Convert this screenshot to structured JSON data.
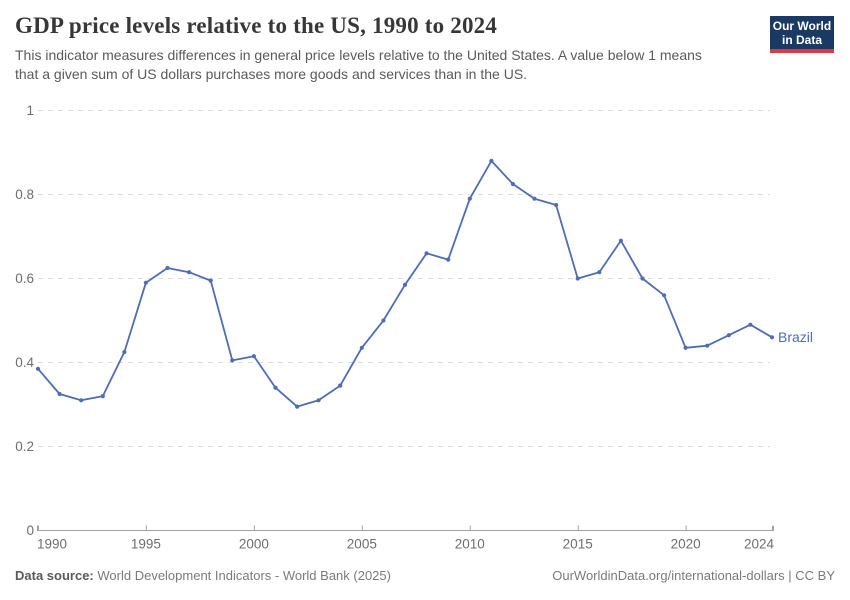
{
  "header": {
    "title": "GDP price levels relative to the US, 1990 to 2024",
    "subtitle_lines": [
      "This indicator measures differences in general price levels relative to the United States. A value below 1 means",
      "that a given sum of US dollars purchases more goods and services than in the US."
    ],
    "logo": {
      "line1": "Our World",
      "line2": "in Data",
      "bg": "#1a3a63",
      "stripe": "#d93b3f"
    }
  },
  "chart_data": {
    "type": "line",
    "title": "GDP price levels relative to the US, 1990 to 2024",
    "xlabel": "",
    "ylabel": "",
    "xlim": [
      1990,
      2024
    ],
    "ylim": [
      0,
      1
    ],
    "grid": "horizontal-dashed",
    "legend": "series-end-label",
    "x_ticks": [
      {
        "v": 1990,
        "label": "1990"
      },
      {
        "v": 1995,
        "label": "1995"
      },
      {
        "v": 2000,
        "label": "2000"
      },
      {
        "v": 2005,
        "label": "2005"
      },
      {
        "v": 2010,
        "label": "2010"
      },
      {
        "v": 2015,
        "label": "2015"
      },
      {
        "v": 2020,
        "label": "2020"
      },
      {
        "v": 2024,
        "label": "2024"
      }
    ],
    "y_ticks": [
      {
        "v": 0,
        "label": "0"
      },
      {
        "v": 0.2,
        "label": "0.2"
      },
      {
        "v": 0.4,
        "label": "0.4"
      },
      {
        "v": 0.6,
        "label": "0.6"
      },
      {
        "v": 0.8,
        "label": "0.8"
      },
      {
        "v": 1,
        "label": "1"
      }
    ],
    "series": [
      {
        "name": "Brazil",
        "color": "#4e6db2",
        "years": [
          1990,
          1991,
          1992,
          1993,
          1994,
          1995,
          1996,
          1997,
          1998,
          1999,
          2000,
          2001,
          2002,
          2003,
          2004,
          2005,
          2006,
          2007,
          2008,
          2009,
          2010,
          2011,
          2012,
          2013,
          2014,
          2015,
          2016,
          2017,
          2018,
          2019,
          2020,
          2021,
          2022,
          2023,
          2024
        ],
        "values": [
          0.385,
          0.325,
          0.31,
          0.32,
          0.425,
          0.59,
          0.625,
          0.615,
          0.595,
          0.405,
          0.415,
          0.34,
          0.295,
          0.31,
          0.345,
          0.435,
          0.5,
          0.585,
          0.66,
          0.645,
          0.79,
          0.88,
          0.825,
          0.79,
          0.775,
          0.6,
          0.615,
          0.69,
          0.6,
          0.56,
          0.435,
          0.44,
          0.465,
          0.49,
          0.46
        ]
      }
    ],
    "colors": {
      "grid": "#dcdcdc",
      "axis": "#a1a1a1",
      "tick_text": "#6e6e6e"
    }
  },
  "footer": {
    "source_label": "Data source:",
    "source_text": "World Development Indicators - World Bank (2025)",
    "attribution": "OurWorldinData.org/international-dollars | CC BY"
  }
}
